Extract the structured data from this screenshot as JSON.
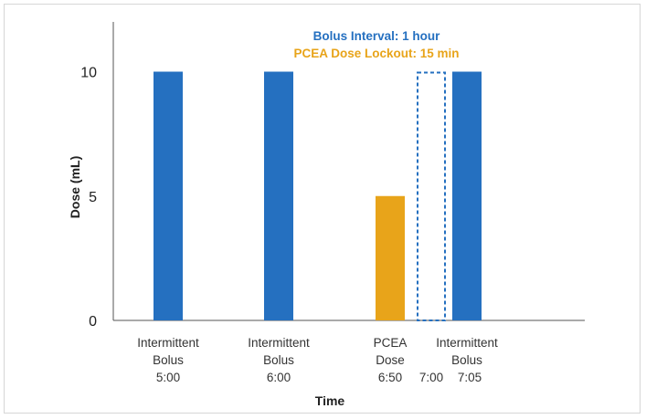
{
  "chart_data": {
    "type": "bar",
    "title": "",
    "xlabel": "Time",
    "ylabel": "Dose (mL)",
    "ylim": [
      0,
      12
    ],
    "yticks": [
      0,
      5,
      10
    ],
    "grid": false,
    "legend": "none",
    "annotations": [
      {
        "text": "Bolus Interval: 1 hour",
        "color": "#2570c0"
      },
      {
        "text": "PCEA Dose Lockout: 15 min",
        "color": "#e8a41a"
      }
    ],
    "bars": [
      {
        "label_lines": [
          "Intermittent",
          "Bolus",
          "5:00"
        ],
        "time": "5:00",
        "value": 10,
        "color": "#2570c0",
        "style": "solid"
      },
      {
        "label_lines": [
          "Intermittent",
          "Bolus",
          "6:00"
        ],
        "time": "6:00",
        "value": 10,
        "color": "#2570c0",
        "style": "solid"
      },
      {
        "label_lines": [
          "PCEA",
          "Dose",
          "6:50"
        ],
        "time": "6:50",
        "value": 5,
        "color": "#e8a41a",
        "style": "solid"
      },
      {
        "label_lines": [
          "",
          "",
          "7:00"
        ],
        "time": "7:00",
        "value": 10,
        "color": "#2570c0",
        "style": "dashed"
      },
      {
        "label_lines": [
          "Intermittent",
          "Bolus",
          "7:05"
        ],
        "time": "7:05",
        "value": 10,
        "color": "#2570c0",
        "style": "solid"
      }
    ]
  }
}
